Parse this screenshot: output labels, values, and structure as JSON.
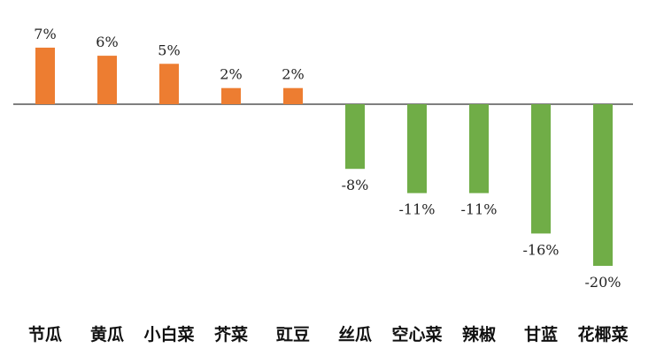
{
  "chart_data": {
    "type": "bar",
    "categories": [
      "节瓜",
      "黄瓜",
      "小白菜",
      "芥菜",
      "豇豆",
      "丝瓜",
      "空心菜",
      "辣椒",
      "甘蓝",
      "花椰菜"
    ],
    "values": [
      7,
      6,
      5,
      2,
      2,
      -8,
      -11,
      -11,
      -16,
      -20
    ],
    "data_labels": [
      "7%",
      "6%",
      "5%",
      "2%",
      "2%",
      "-8%",
      "-11%",
      "-11%",
      "-16%",
      "-20%"
    ],
    "unit": "%",
    "ylim": [
      -20,
      7
    ],
    "grid": false,
    "colors": {
      "positive": "#ED7D31",
      "negative": "#70AD47",
      "axis": "#333333"
    }
  }
}
